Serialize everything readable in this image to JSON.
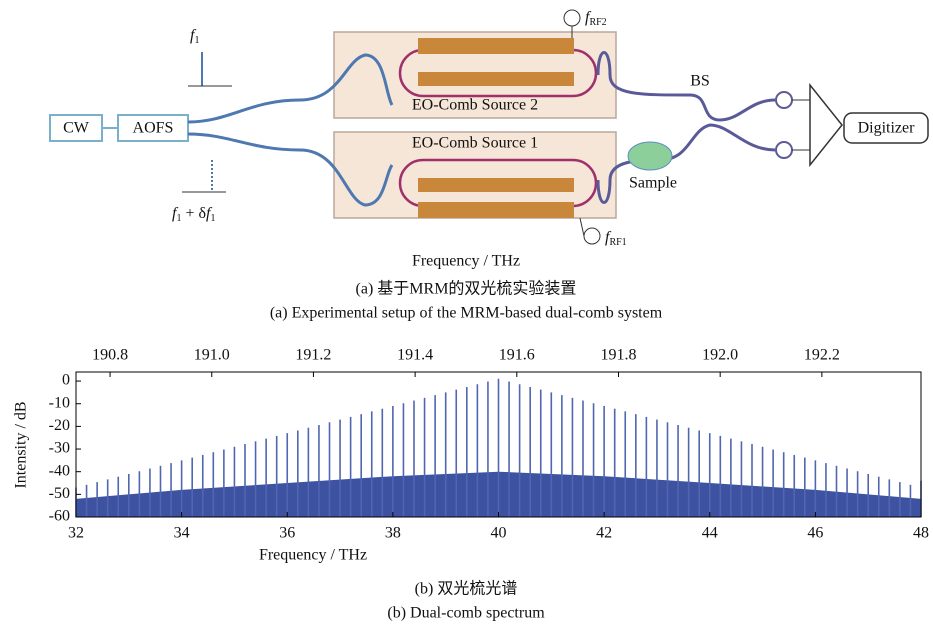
{
  "diagram": {
    "cw": "CW",
    "aofs": "AOFS",
    "f1": {
      "f": "f",
      "sub": "1"
    },
    "f1_shift": {
      "f": "f",
      "sub": "1",
      "plus": " + δ",
      "f2": "f",
      "sub2": "1"
    },
    "source2": "EO-Comb Source 2",
    "source1": "EO-Comb Source 1",
    "rf2": {
      "f": "f",
      "sub": "RF2"
    },
    "rf1": {
      "f": "f",
      "sub": "RF1"
    },
    "bs": "BS",
    "sample": "Sample",
    "digitizer": "Digitizer",
    "stray_label": "Frequency / THz",
    "caption_zh": "(a) 基于MRM的双光梳实验装置",
    "caption_en": "(a) Experimental setup of the MRM-based dual-comb system"
  },
  "chart_data": {
    "type": "comb",
    "xlabel": "Frequency / THz",
    "ylabel": "Intensity / dB",
    "caption_zh": "(b) 双光梳光谱",
    "caption_en": "(b) Dual-comb spectrum",
    "xlim": [
      32,
      48
    ],
    "xticks": [
      32,
      34,
      36,
      38,
      40,
      42,
      44,
      46,
      48
    ],
    "ylim": [
      -60,
      4
    ],
    "yticks": [
      0,
      -10,
      -20,
      -30,
      -40,
      -50,
      -60
    ],
    "x2lim": [
      190.733,
      192.395
    ],
    "x2ticks": [
      190.8,
      {
        "value": 191,
        "label": "191.0"
      },
      191.2,
      191.4,
      191.6,
      191.8,
      {
        "value": 192,
        "label": "192.0"
      },
      192.2
    ],
    "color": "#5066b0",
    "floor_color": "#3d52a0",
    "x": [
      32,
      32.2,
      32.4,
      32.6,
      32.8,
      33,
      33.2,
      33.4,
      33.6,
      33.8,
      34,
      34.2,
      34.4,
      34.6,
      34.8,
      35,
      35.2,
      35.4,
      35.6,
      35.8,
      36,
      36.2,
      36.4,
      36.6,
      36.8,
      37,
      37.2,
      37.4,
      37.6,
      37.8,
      38,
      38.2,
      38.4,
      38.6,
      38.8,
      39,
      39.2,
      39.4,
      39.6,
      39.8,
      40,
      40.2,
      40.4,
      40.6,
      40.8,
      41,
      41.2,
      41.4,
      41.6,
      41.8,
      42,
      42.2,
      42.4,
      42.6,
      42.8,
      43,
      43.2,
      43.4,
      43.6,
      43.8,
      44,
      44.2,
      44.4,
      44.6,
      44.8,
      45,
      45.2,
      45.4,
      45.6,
      45.8,
      46,
      46.2,
      46.4,
      46.6,
      46.8,
      47,
      47.2,
      47.4,
      47.6,
      47.8,
      48
    ],
    "values": [
      -47,
      -45.8,
      -44.6,
      -43.4,
      -42.2,
      -41,
      -39.8,
      -38.6,
      -37.4,
      -36.2,
      -35,
      -33.8,
      -32.6,
      -31.4,
      -30.2,
      -29,
      -27.8,
      -26.6,
      -25.4,
      -24.2,
      -23,
      -21.8,
      -20.6,
      -19.4,
      -18.2,
      -17,
      -15.8,
      -14.6,
      -13.4,
      -12.2,
      -11,
      -9.8,
      -8.6,
      -7.4,
      -6.2,
      -5,
      -3.8,
      -2.6,
      -1.4,
      -0.2,
      1,
      -0.2,
      -1.4,
      -2.6,
      -3.8,
      -5,
      -6.2,
      -7.4,
      -8.6,
      -9.8,
      -11,
      -12.2,
      -13.4,
      -14.6,
      -15.8,
      -17,
      -18.2,
      -19.4,
      -20.6,
      -21.8,
      -23,
      -24.2,
      -25.4,
      -26.6,
      -27.8,
      -29,
      -30.2,
      -31.4,
      -32.6,
      -33.8,
      -35,
      -36.2,
      -37.4,
      -38.6,
      -39.8,
      -41,
      -42.2,
      -43.4,
      -44.6,
      -45.8,
      -44
    ],
    "floor_x": [
      32,
      34,
      36,
      38,
      40,
      42,
      44,
      46,
      48
    ],
    "floor_values": [
      -52,
      -48,
      -45,
      -42,
      -40,
      -42,
      -45,
      -48,
      -52
    ]
  }
}
